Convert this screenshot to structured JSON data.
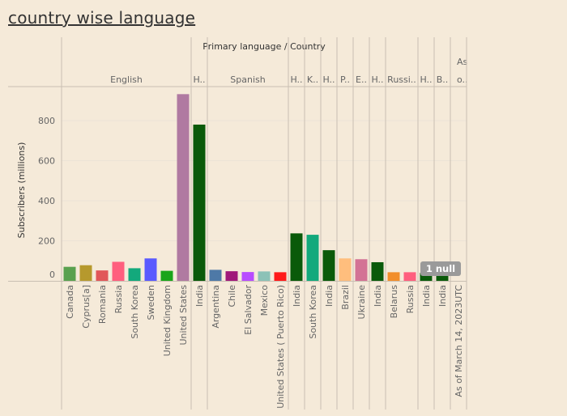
{
  "title": "country wise language",
  "chart_data": {
    "type": "bar",
    "header": "Primary language  /  Country",
    "ylabel": "Subscribers (millions)",
    "ylim": [
      0,
      950
    ],
    "yticks": [
      0,
      200,
      400,
      600,
      800
    ],
    "null_badge": "1 null",
    "groups": [
      {
        "label": "English",
        "bars": [
          {
            "country": "Canada",
            "value": 70,
            "color": "#59a14f"
          },
          {
            "country": "Cyprus[a]",
            "value": 78,
            "color": "#b6992d"
          },
          {
            "country": "Romania",
            "value": 52,
            "color": "#e15759"
          },
          {
            "country": "Russia",
            "value": 95,
            "color": "#ff5f7e"
          },
          {
            "country": "South Korea",
            "value": 63,
            "color": "#13a97c"
          },
          {
            "country": "Sweden",
            "value": 112,
            "color": "#5a5aff"
          },
          {
            "country": "United Kingdom",
            "value": 50,
            "color": "#1aa51a"
          },
          {
            "country": "United States",
            "value": 932,
            "color": "#b07aa1"
          }
        ]
      },
      {
        "label": "H..",
        "bars": [
          {
            "country": "India",
            "value": 780,
            "color": "#0a5a0a"
          }
        ]
      },
      {
        "label": "Spanish",
        "bars": [
          {
            "country": "Argentina",
            "value": 55,
            "color": "#4e79a7"
          },
          {
            "country": "Chile",
            "value": 48,
            "color": "#a0197a"
          },
          {
            "country": "El Salvador",
            "value": 44,
            "color": "#b84cff"
          },
          {
            "country": "Mexico",
            "value": 47,
            "color": "#8cc2b7"
          },
          {
            "country": "United States ( Puerto Rico)",
            "value": 43,
            "color": "#ff1a1a"
          }
        ]
      },
      {
        "label": "H..",
        "bars": [
          {
            "country": "India",
            "value": 237,
            "color": "#0a5a0a"
          }
        ]
      },
      {
        "label": "K..",
        "bars": [
          {
            "country": "South Korea",
            "value": 230,
            "color": "#13a97c"
          }
        ]
      },
      {
        "label": "H..",
        "bars": [
          {
            "country": "India",
            "value": 153,
            "color": "#0a5a0a"
          }
        ]
      },
      {
        "label": "P..",
        "bars": [
          {
            "country": "Brazil",
            "value": 112,
            "color": "#ffbe7d"
          }
        ]
      },
      {
        "label": "E..",
        "bars": [
          {
            "country": "Ukraine",
            "value": 108,
            "color": "#d37295"
          }
        ]
      },
      {
        "label": "H..",
        "bars": [
          {
            "country": "India",
            "value": 93,
            "color": "#0a5a0a"
          }
        ]
      },
      {
        "label": "Russi..",
        "bars": [
          {
            "country": "Belarus",
            "value": 43,
            "color": "#f28e2b"
          },
          {
            "country": "Russia",
            "value": 43,
            "color": "#ff5f7e"
          }
        ]
      },
      {
        "label": "H..",
        "bars": [
          {
            "country": "India",
            "value": 40,
            "color": "#0a5a0a"
          }
        ]
      },
      {
        "label": "B..",
        "bars": [
          {
            "country": "India",
            "value": 40,
            "color": "#0a5a0a"
          }
        ]
      },
      {
        "label": "As\no..",
        "bars": [
          {
            "country": "As of March 14, 2023UTC",
            "value": null,
            "color": "#0a5a0a"
          }
        ]
      }
    ]
  }
}
